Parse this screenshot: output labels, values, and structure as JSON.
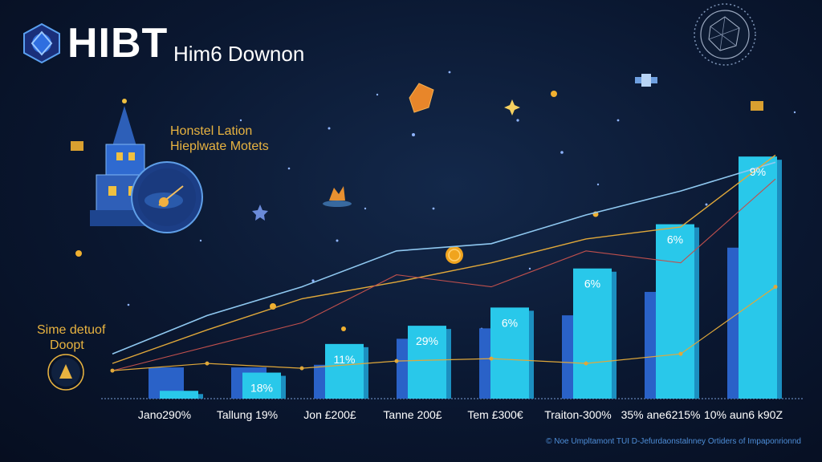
{
  "brand": "HIBT",
  "subtitle": "Him6 Downon",
  "annotations": {
    "top_line1": "Honstel Lation",
    "top_line2": "Hieplwate Motets",
    "left_line1": "Sime detuof",
    "left_line2": "Doopt"
  },
  "footer": "© Noe Umpltamont TUI D-Jefurdaonstalnney Ortiders of Impaponrionnd",
  "colors": {
    "background": "#0a1730",
    "bar_front": "#29c8ea",
    "bar_back": "#2a62c8",
    "line_gold": "#e0a83a",
    "line_blue": "#8fc8f0",
    "line_red": "#c0504d",
    "text_white": "#ffffff",
    "annotation": "#e8b340"
  },
  "icons": [
    "hexagon-logo-icon",
    "castle-tower-icon",
    "globe-icon",
    "satellite-icon",
    "compass-icon",
    "coin-icon",
    "star-icon"
  ],
  "chart_data": {
    "type": "bar",
    "categories": [
      "Jano290%",
      "Tallung 19%",
      "Jon £200£",
      "Tanne 200£",
      "Tem £300€",
      "Traiton-300%",
      "35% ane6215%",
      "10% aun6 k90Z"
    ],
    "series": [
      {
        "values": [
          3,
          10,
          21,
          28,
          35,
          50,
          67,
          93
        ]
      },
      {
        "values": [
          12,
          12,
          13,
          23,
          27,
          32,
          41,
          58
        ]
      }
    ],
    "bar_labels": [
      "",
      "18%",
      "11%",
      "29%",
      "6%",
      "6%",
      "6%",
      "9%"
    ],
    "lines": [
      {
        "values": [
          12,
          28,
          40,
          55,
          58,
          70,
          80,
          92
        ]
      },
      {
        "values": [
          8,
          22,
          35,
          42,
          50,
          60,
          65,
          95
        ]
      },
      {
        "values": [
          5,
          15,
          25,
          45,
          40,
          55,
          50,
          85
        ]
      },
      {
        "values": [
          5,
          8,
          6,
          9,
          10,
          8,
          12,
          40
        ]
      }
    ],
    "ylim": [
      0,
      110
    ],
    "grid": false,
    "legend": "none"
  }
}
